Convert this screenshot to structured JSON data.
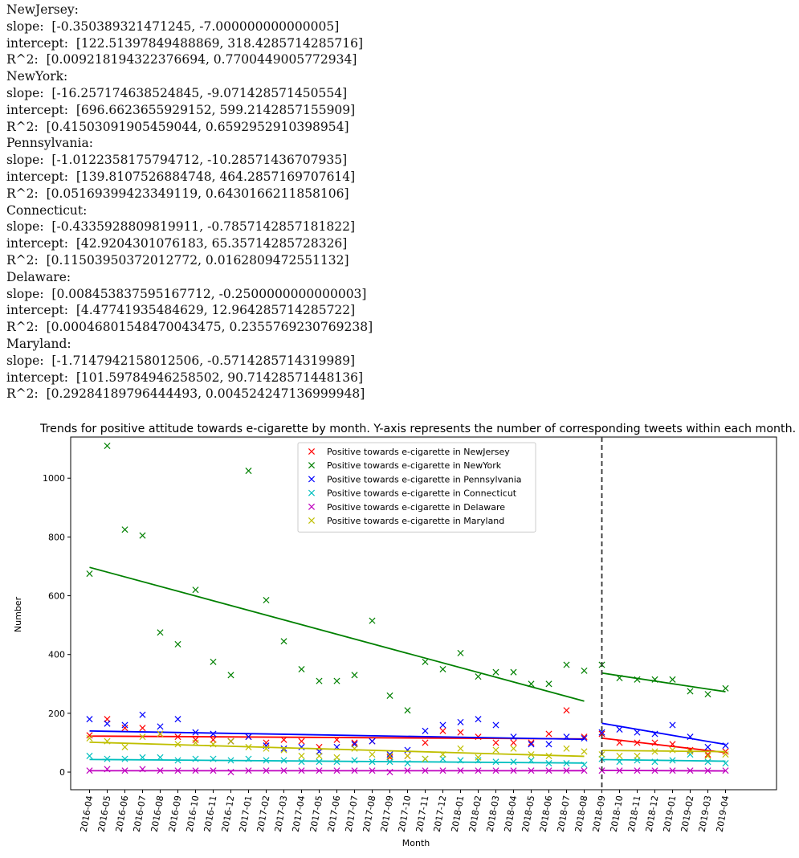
{
  "console_output": [
    "NewJersey:",
    "slope:  [-0.350389321471245, -7.000000000000005]",
    "intercept:  [122.51397849488869, 318.4285714285716]",
    "R^2:  [0.009218194322376694, 0.7700449005772934]",
    "NewYork:",
    "slope:  [-16.257174638524845, -9.071428571450554]",
    "intercept:  [696.6623655929152, 599.2142857155909]",
    "R^2:  [0.41503091905459044, 0.6592952910398954]",
    "Pennsylvania:",
    "slope:  [-1.0122358175794712, -10.28571436707935]",
    "intercept:  [139.8107526884748, 464.2857169707614]",
    "R^2:  [0.05169399423349119, 0.6430166211858106]",
    "Connecticut:",
    "slope:  [-0.4335928809819911, -0.7857142857181822]",
    "intercept:  [42.9204301076183, 65.35714285728326]",
    "R^2:  [0.11503950372012772, 0.0162809472551132]",
    "Delaware:",
    "slope:  [0.008453837595167712, -0.2500000000000003]",
    "intercept:  [4.47741935484629, 12.964285714285722]",
    "R^2:  [0.00046801548470043475, 0.2355769230769238]",
    "Maryland:",
    "slope:  [-1.7147942158012506, -0.5714285714319989]",
    "intercept:  [101.59784946258502, 90.71428571448136]",
    "R^2:  [0.29284189796444493, 0.004524247136999948]"
  ],
  "chart_data": {
    "type": "scatter",
    "title": "Trends for positive attitude towards e-cigarette by month. Y-axis represents the number of corresponding tweets within each month.",
    "xlabel": "Month",
    "ylabel": "Number",
    "ylim": [
      -60,
      1140
    ],
    "yticks": [
      0,
      200,
      400,
      600,
      800,
      1000
    ],
    "x": [
      "2016-04",
      "2016-05",
      "2016-06",
      "2016-07",
      "2016-08",
      "2016-09",
      "2016-10",
      "2016-11",
      "2016-12",
      "2017-01",
      "2017-02",
      "2017-03",
      "2017-04",
      "2017-05",
      "2017-06",
      "2017-07",
      "2017-08",
      "2017-09",
      "2017-10",
      "2017-11",
      "2017-12",
      "2018-01",
      "2018-02",
      "2018-03",
      "2018-04",
      "2018-05",
      "2018-06",
      "2018-07",
      "2018-08",
      "2018-09",
      "2018-10",
      "2018-11",
      "2018-12",
      "2019-01",
      "2019-02",
      "2019-03",
      "2019-04"
    ],
    "vline_at": "2018-09",
    "legend_location": "upper center",
    "grid": false,
    "series": [
      {
        "name": "Positive towards e-cigarette in NewJersey",
        "color": "#ff0000",
        "values": [
          125,
          180,
          150,
          150,
          130,
          120,
          110,
          110,
          105,
          120,
          100,
          110,
          105,
          85,
          110,
          100,
          105,
          50,
          55,
          100,
          140,
          135,
          120,
          100,
          100,
          100,
          130,
          210,
          120,
          130,
          100,
          100,
          100,
          95,
          75,
          60,
          70
        ],
        "fit": [
          {
            "from": "2016-04",
            "to": "2018-08",
            "y_start": 122.51,
            "y_end": 112.7
          },
          {
            "from": "2018-09",
            "to": "2019-04",
            "y_start": 115.43,
            "y_end": 66.43
          }
        ]
      },
      {
        "name": "Positive towards e-cigarette in NewYork",
        "color": "#008000",
        "values": [
          675,
          1110,
          825,
          805,
          475,
          435,
          620,
          375,
          330,
          1025,
          585,
          445,
          350,
          310,
          310,
          330,
          515,
          260,
          210,
          375,
          350,
          405,
          325,
          340,
          340,
          300,
          300,
          365,
          345,
          365,
          320,
          315,
          315,
          315,
          275,
          265,
          285
        ],
        "fit": [
          {
            "from": "2016-04",
            "to": "2018-08",
            "y_start": 696.66,
            "y_end": 241.46
          },
          {
            "from": "2018-09",
            "to": "2019-04",
            "y_start": 336.96,
            "y_end": 273.46
          }
        ]
      },
      {
        "name": "Positive towards e-cigarette in Pennsylvania",
        "color": "#0000ff",
        "values": [
          180,
          165,
          160,
          195,
          155,
          180,
          135,
          130,
          105,
          120,
          90,
          80,
          85,
          70,
          85,
          95,
          105,
          60,
          75,
          140,
          160,
          170,
          180,
          160,
          120,
          95,
          95,
          120,
          115,
          135,
          145,
          135,
          130,
          160,
          120,
          85,
          90
        ],
        "fit": [
          {
            "from": "2016-04",
            "to": "2018-08",
            "y_start": 139.81,
            "y_end": 111.47
          },
          {
            "from": "2018-09",
            "to": "2019-04",
            "y_start": 166.0,
            "y_end": 94.0
          }
        ]
      },
      {
        "name": "Positive towards e-cigarette in Connecticut",
        "color": "#00bfbf",
        "values": [
          55,
          45,
          45,
          50,
          50,
          40,
          45,
          45,
          40,
          45,
          40,
          40,
          35,
          35,
          35,
          40,
          35,
          35,
          30,
          45,
          45,
          40,
          40,
          35,
          35,
          40,
          30,
          30,
          25,
          45,
          35,
          40,
          35,
          40,
          60,
          35,
          30
        ],
        "fit": [
          {
            "from": "2016-04",
            "to": "2018-08",
            "y_start": 42.92,
            "y_end": 30.78
          },
          {
            "from": "2018-09",
            "to": "2019-04",
            "y_start": 42.57,
            "y_end": 37.07
          }
        ]
      },
      {
        "name": "Positive towards e-cigarette in Delaware",
        "color": "#bf00bf",
        "values": [
          5,
          10,
          5,
          10,
          5,
          5,
          5,
          5,
          0,
          5,
          5,
          5,
          5,
          5,
          5,
          5,
          5,
          0,
          5,
          5,
          5,
          5,
          5,
          5,
          5,
          5,
          5,
          5,
          5,
          5,
          5,
          5,
          5,
          5,
          5,
          5,
          5
        ],
        "fit": [
          {
            "from": "2016-04",
            "to": "2018-08",
            "y_start": 4.48,
            "y_end": 4.71
          },
          {
            "from": "2018-09",
            "to": "2019-04",
            "y_start": 5.71,
            "y_end": 3.96
          }
        ]
      },
      {
        "name": "Positive towards e-cigarette in Maryland",
        "color": "#bfbf00",
        "values": [
          115,
          105,
          85,
          120,
          130,
          95,
          100,
          95,
          105,
          85,
          80,
          75,
          55,
          55,
          50,
          80,
          60,
          55,
          55,
          45,
          60,
          80,
          50,
          75,
          80,
          60,
          55,
          80,
          70,
          60,
          55,
          55,
          70,
          75,
          70,
          55,
          60
        ],
        "fit": [
          {
            "from": "2016-04",
            "to": "2018-08",
            "y_start": 101.6,
            "y_end": 53.58
          },
          {
            "from": "2018-09",
            "to": "2019-04",
            "y_start": 73.57,
            "y_end": 69.57
          }
        ]
      }
    ]
  }
}
